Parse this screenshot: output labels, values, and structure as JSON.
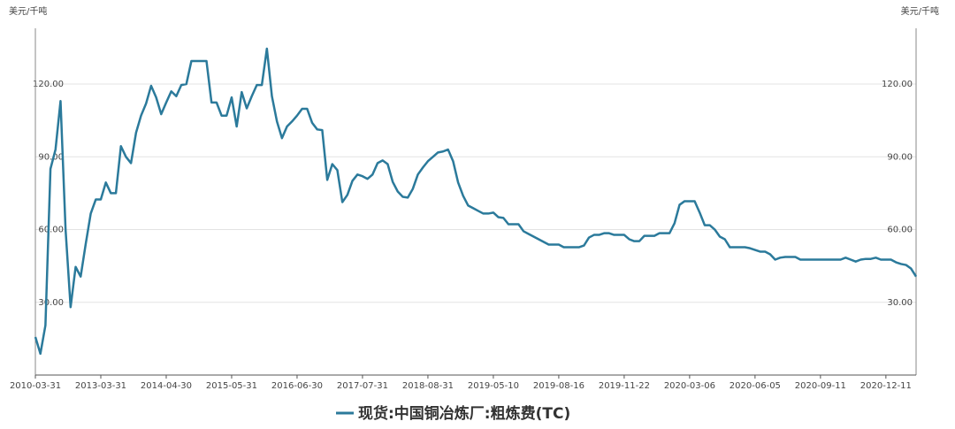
{
  "chart_data": {
    "type": "line",
    "ylabel": "美元/千吨",
    "y2label": "美元/千吨",
    "categories": [
      "2010-03-31",
      null,
      null,
      null,
      null,
      null,
      null,
      null,
      null,
      null,
      null,
      null,
      null,
      "2013-03-31",
      null,
      null,
      null,
      null,
      null,
      null,
      null,
      null,
      null,
      null,
      null,
      null,
      "2014-04-30",
      null,
      null,
      null,
      null,
      null,
      null,
      null,
      null,
      null,
      null,
      null,
      null,
      "2015-05-31",
      null,
      null,
      null,
      null,
      null,
      null,
      null,
      null,
      null,
      null,
      null,
      null,
      "2016-06-30",
      null,
      null,
      null,
      null,
      null,
      null,
      null,
      null,
      null,
      null,
      null,
      null,
      "2017-07-31",
      null,
      null,
      null,
      null,
      null,
      null,
      null,
      null,
      null,
      null,
      null,
      null,
      "2018-08-31",
      null,
      null,
      null,
      null,
      null,
      null,
      null,
      null,
      null,
      null,
      null,
      null,
      "2019-05-10",
      null,
      null,
      null,
      null,
      null,
      null,
      null,
      null,
      null,
      null,
      null,
      null,
      "2019-08-16",
      null,
      null,
      null,
      null,
      null,
      null,
      null,
      null,
      null,
      null,
      null,
      null,
      "2019-11-22",
      null,
      null,
      null,
      null,
      null,
      null,
      null,
      null,
      null,
      null,
      null,
      null,
      "2020-03-06",
      null,
      null,
      null,
      null,
      null,
      null,
      null,
      null,
      null,
      null,
      null,
      null,
      "2020-06-05",
      null,
      null,
      null,
      null,
      null,
      null,
      null,
      null,
      null,
      null,
      null,
      null,
      "2020-09-11",
      null,
      null,
      null,
      null,
      null,
      null,
      null,
      null,
      null,
      null,
      null,
      null,
      "2020-12-11",
      null,
      null,
      null,
      null,
      null,
      null
    ],
    "series": [
      {
        "name": "现货:中国铜冶炼厂:粗炼费(TC)",
        "color": "#2b7a9b",
        "values": [
          15.7,
          8.8,
          20.5,
          85,
          93,
          113,
          60,
          28,
          44.6,
          40.6,
          54,
          66.6,
          72.4,
          72.4,
          79.4,
          75,
          75,
          94.4,
          90,
          87.4,
          99.9,
          107,
          112,
          119.3,
          114.5,
          107.6,
          112.4,
          117,
          115,
          119.6,
          120,
          129.5,
          129.5,
          129.5,
          129.5,
          112.4,
          112.4,
          107,
          107,
          114.5,
          102.5,
          116.7,
          110,
          115,
          119.6,
          119.6,
          134.6,
          115,
          104.6,
          97.7,
          102.5,
          104.6,
          107,
          109.8,
          109.8,
          104,
          101.3,
          101,
          80.5,
          87,
          84.5,
          71.3,
          74.3,
          80.1,
          82.7,
          82,
          80.9,
          82.7,
          87.4,
          88.5,
          87,
          79.7,
          75.7,
          73.5,
          73.2,
          76.8,
          82.7,
          85.6,
          88.2,
          90,
          91.8,
          92.2,
          93,
          88.2,
          79.4,
          73.9,
          69.9,
          68.8,
          67.7,
          66.6,
          66.6,
          67,
          65.1,
          64.8,
          62.2,
          62.2,
          62.2,
          59.3,
          58.2,
          57.1,
          56,
          54.9,
          53.8,
          53.8,
          53.8,
          52.7,
          52.7,
          52.7,
          52.7,
          53.4,
          56.7,
          57.8,
          57.8,
          58.5,
          58.5,
          57.8,
          57.8,
          57.8,
          56,
          55.2,
          55.2,
          57.4,
          57.4,
          57.4,
          58.5,
          58.5,
          58.5,
          62.6,
          70.2,
          71.7,
          71.7,
          71.7,
          67,
          61.8,
          61.8,
          60,
          57.1,
          56,
          52.7,
          52.7,
          52.7,
          52.7,
          52.3,
          51.6,
          50.9,
          50.9,
          49.8,
          47.6,
          48.4,
          48.7,
          48.7,
          48.7,
          47.6,
          47.6,
          47.6,
          47.6,
          47.6,
          47.6,
          47.6,
          47.6,
          47.6,
          48.4,
          47.6,
          46.8,
          47.6,
          47.9,
          47.9,
          48.4,
          47.6,
          47.6,
          47.6,
          46.5,
          45.8,
          45.4,
          43.9,
          40.6
        ]
      }
    ],
    "ylim": [
      0,
      143
    ],
    "yticks": [
      {
        "value": 30,
        "label": "30.00"
      },
      {
        "value": 60,
        "label": "60.00"
      },
      {
        "value": 90,
        "label": "90.00"
      },
      {
        "value": 120,
        "label": "120.00"
      }
    ],
    "y2lim": [
      0,
      143
    ],
    "y2ticks": [
      {
        "value": 30,
        "label": "30.00"
      },
      {
        "value": 60,
        "label": "60.00"
      },
      {
        "value": 90,
        "label": "90.00"
      },
      {
        "value": 120,
        "label": "120.00"
      }
    ],
    "grid": true,
    "legend": "bottom"
  }
}
